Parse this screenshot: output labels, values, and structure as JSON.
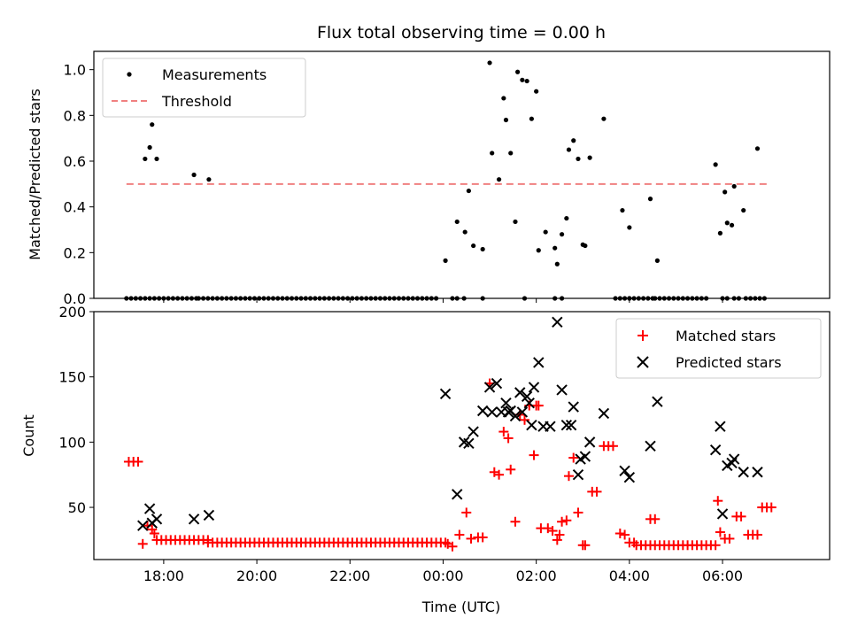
{
  "chart_data": [
    {
      "type": "scatter",
      "title": "Flux total observing time = 0.00 h",
      "xlabel": "",
      "ylabel": "Matched/Predicted stars",
      "x_unit": "hours UTC (continuing past midnight)",
      "xlim": [
        16.5,
        32.3
      ],
      "ylim": [
        0,
        1.08
      ],
      "xticks": [
        18,
        20,
        22,
        24,
        26,
        28,
        30
      ],
      "xtick_labels": [
        "",
        "",
        "",
        "",
        "",
        "",
        ""
      ],
      "yticks": [
        0,
        0.2,
        0.4,
        0.6,
        0.8,
        1.0
      ],
      "ytick_labels": [
        "0.0",
        "0.2",
        "0.4",
        "0.6",
        "0.8",
        "1.0"
      ],
      "legend_placement": "upper-left",
      "grid": false,
      "series": [
        {
          "name": "Measurements",
          "marker": "dot",
          "color": "#000000",
          "points": [
            [
              17.6,
              0.61
            ],
            [
              17.7,
              0.66
            ],
            [
              17.75,
              0.76
            ],
            [
              17.85,
              0.61
            ],
            [
              18.65,
              0.54
            ],
            [
              18.97,
              0.52
            ],
            [
              24.05,
              0.165
            ],
            [
              24.3,
              0.335
            ],
            [
              24.47,
              0.29
            ],
            [
              24.55,
              0.47
            ],
            [
              24.65,
              0.23
            ],
            [
              24.85,
              0.215
            ],
            [
              25.0,
              1.03
            ],
            [
              25.05,
              0.635
            ],
            [
              25.2,
              0.52
            ],
            [
              25.3,
              0.875
            ],
            [
              25.35,
              0.78
            ],
            [
              25.45,
              0.635
            ],
            [
              25.55,
              0.335
            ],
            [
              25.6,
              0.99
            ],
            [
              25.7,
              0.955
            ],
            [
              25.8,
              0.95
            ],
            [
              25.9,
              0.785
            ],
            [
              26.0,
              0.905
            ],
            [
              26.05,
              0.21
            ],
            [
              26.2,
              0.29
            ],
            [
              26.4,
              0.22
            ],
            [
              26.45,
              0.15
            ],
            [
              26.55,
              0.28
            ],
            [
              26.65,
              0.35
            ],
            [
              26.7,
              0.65
            ],
            [
              26.8,
              0.69
            ],
            [
              26.9,
              0.61
            ],
            [
              27.0,
              0.235
            ],
            [
              27.05,
              0.23
            ],
            [
              27.15,
              0.615
            ],
            [
              27.45,
              0.785
            ],
            [
              27.85,
              0.385
            ],
            [
              28.0,
              0.31
            ],
            [
              28.45,
              0.435
            ],
            [
              28.6,
              0.165
            ],
            [
              29.85,
              0.585
            ],
            [
              29.95,
              0.285
            ],
            [
              30.05,
              0.465
            ],
            [
              30.1,
              0.33
            ],
            [
              30.2,
              0.32
            ],
            [
              30.25,
              0.49
            ],
            [
              30.45,
              0.385
            ],
            [
              30.75,
              0.655
            ]
          ],
          "zero_runs": [
            [
              17.2,
              17.5
            ],
            [
              17.6,
              17.95
            ],
            [
              18.0,
              18.75
            ],
            [
              18.75,
              18.95
            ],
            [
              19.05,
              23.9
            ],
            [
              24.2,
              24.3
            ],
            [
              24.45,
              24.5
            ],
            [
              24.85,
              24.9
            ],
            [
              25.75,
              25.75
            ],
            [
              26.4,
              26.45
            ],
            [
              26.55,
              26.55
            ],
            [
              27.7,
              28.0
            ],
            [
              28.0,
              28.55
            ],
            [
              28.55,
              29.7
            ],
            [
              30.0,
              30.15
            ],
            [
              30.25,
              30.35
            ],
            [
              30.5,
              30.95
            ]
          ]
        },
        {
          "name": "Threshold",
          "style": "dashed",
          "color": "#f08080",
          "x": [
            17.2,
            31.0
          ],
          "y": [
            0.5,
            0.5
          ]
        }
      ]
    },
    {
      "type": "scatter",
      "title": "",
      "xlabel": "Time (UTC)",
      "ylabel": "Count",
      "x_unit": "hours UTC (continuing past midnight)",
      "xlim": [
        16.5,
        32.3
      ],
      "ylim": [
        10,
        200
      ],
      "xticks": [
        18,
        20,
        22,
        24,
        26,
        28,
        30
      ],
      "xtick_labels": [
        "18:00",
        "20:00",
        "22:00",
        "00:00",
        "02:00",
        "04:00",
        "06:00"
      ],
      "yticks": [
        50,
        100,
        150,
        200
      ],
      "ytick_labels": [
        "50",
        "100",
        "150",
        "200"
      ],
      "legend_placement": "upper-right",
      "grid": false,
      "series": [
        {
          "name": "Matched stars",
          "marker": "plus",
          "color": "#ff0000",
          "points": [
            [
              17.25,
              85
            ],
            [
              17.35,
              85
            ],
            [
              17.45,
              85
            ],
            [
              17.55,
              22
            ],
            [
              17.65,
              36
            ],
            [
              17.75,
              33
            ],
            [
              17.8,
              30
            ],
            [
              24.1,
              22
            ],
            [
              24.2,
              20
            ],
            [
              24.35,
              29
            ],
            [
              24.5,
              46
            ],
            [
              24.6,
              26
            ],
            [
              24.75,
              27
            ],
            [
              24.85,
              27
            ],
            [
              25.0,
              145
            ],
            [
              25.1,
              77
            ],
            [
              25.2,
              75
            ],
            [
              25.3,
              108
            ],
            [
              25.4,
              103
            ],
            [
              25.45,
              79
            ],
            [
              25.55,
              39
            ],
            [
              25.65,
              121
            ],
            [
              25.75,
              117
            ],
            [
              25.85,
              128
            ],
            [
              25.95,
              90
            ],
            [
              26.0,
              128
            ],
            [
              26.05,
              128
            ],
            [
              26.1,
              34
            ],
            [
              26.25,
              34
            ],
            [
              26.35,
              32
            ],
            [
              26.45,
              25
            ],
            [
              26.5,
              29
            ],
            [
              26.55,
              39
            ],
            [
              26.65,
              40
            ],
            [
              26.7,
              74
            ],
            [
              26.8,
              88
            ],
            [
              26.9,
              46
            ],
            [
              27.0,
              21
            ],
            [
              27.05,
              21
            ],
            [
              27.2,
              62
            ],
            [
              27.3,
              62
            ],
            [
              27.45,
              97
            ],
            [
              27.55,
              97
            ],
            [
              27.65,
              97
            ],
            [
              27.8,
              30
            ],
            [
              27.9,
              29
            ],
            [
              28.0,
              23
            ],
            [
              28.1,
              23
            ],
            [
              28.45,
              41
            ],
            [
              28.55,
              41
            ],
            [
              29.9,
              55
            ],
            [
              29.95,
              31
            ],
            [
              30.05,
              26
            ],
            [
              30.15,
              26
            ],
            [
              30.3,
              43
            ],
            [
              30.4,
              43
            ],
            [
              30.55,
              29
            ],
            [
              30.65,
              29
            ],
            [
              30.75,
              29
            ],
            [
              30.85,
              50
            ],
            [
              30.95,
              50
            ],
            [
              31.05,
              50
            ]
          ],
          "flat_runs": [
            [
              17.85,
              18.95,
              25
            ],
            [
              18.95,
              24.1,
              23
            ],
            [
              28.15,
              29.85,
              21
            ]
          ]
        },
        {
          "name": "Predicted stars",
          "marker": "x",
          "color": "#000000",
          "points": [
            [
              17.55,
              36
            ],
            [
              17.7,
              49
            ],
            [
              17.75,
              38
            ],
            [
              17.85,
              41
            ],
            [
              18.65,
              41
            ],
            [
              18.97,
              44
            ],
            [
              24.05,
              137
            ],
            [
              24.3,
              60
            ],
            [
              24.45,
              100
            ],
            [
              24.55,
              99
            ],
            [
              24.65,
              108
            ],
            [
              24.85,
              124
            ],
            [
              25.0,
              142
            ],
            [
              25.05,
              123
            ],
            [
              25.15,
              145
            ],
            [
              25.25,
              123
            ],
            [
              25.35,
              130
            ],
            [
              25.4,
              123
            ],
            [
              25.45,
              124
            ],
            [
              25.55,
              120
            ],
            [
              25.65,
              138
            ],
            [
              25.7,
              123
            ],
            [
              25.8,
              135
            ],
            [
              25.85,
              130
            ],
            [
              25.9,
              113
            ],
            [
              25.95,
              142
            ],
            [
              26.05,
              161
            ],
            [
              26.15,
              112
            ],
            [
              26.3,
              112
            ],
            [
              26.45,
              192
            ],
            [
              26.55,
              140
            ],
            [
              26.65,
              113
            ],
            [
              26.75,
              113
            ],
            [
              26.8,
              127
            ],
            [
              26.9,
              75
            ],
            [
              26.95,
              87
            ],
            [
              27.05,
              89
            ],
            [
              27.15,
              100
            ],
            [
              27.45,
              122
            ],
            [
              27.9,
              78
            ],
            [
              28.0,
              73
            ],
            [
              28.45,
              97
            ],
            [
              28.6,
              131
            ],
            [
              29.85,
              94
            ],
            [
              29.95,
              112
            ],
            [
              30.0,
              45
            ],
            [
              30.1,
              82
            ],
            [
              30.2,
              84
            ],
            [
              30.25,
              87
            ],
            [
              30.45,
              77
            ],
            [
              30.75,
              77
            ]
          ]
        }
      ]
    }
  ]
}
